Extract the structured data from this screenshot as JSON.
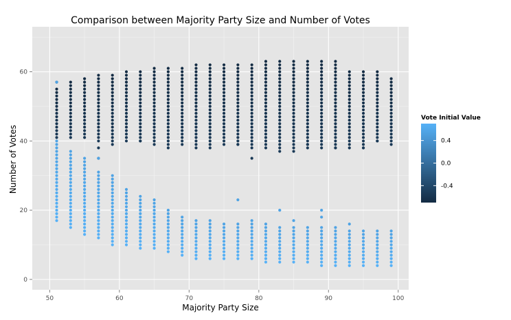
{
  "chart_data": {
    "type": "scatter",
    "title": "Comparison between Majority Party Size and Number of Votes",
    "xlabel": "Majority Party Size",
    "ylabel": "Number of Votes",
    "xlim": [
      47.5,
      101.5
    ],
    "ylim": [
      -3,
      73
    ],
    "x_ticks": [
      50,
      60,
      70,
      80,
      90,
      100
    ],
    "y_ticks": [
      0,
      20,
      40,
      60
    ],
    "grid": true,
    "legend": {
      "title": "Vote Initial Value",
      "position": "right",
      "ticks": [
        0.4,
        0.0,
        -0.4
      ],
      "tick_labels": [
        "0.4",
        "0.0",
        "-0.4"
      ],
      "range": [
        -0.7,
        0.7
      ],
      "low_color": "#132b43",
      "high_color": "#56b1f7"
    },
    "colors": {
      "panel_background": "#e5e5e5",
      "grid_major": "#ffffff",
      "grid_minor": "#f2f2f2"
    },
    "x_values": [
      51,
      53,
      55,
      57,
      59,
      61,
      63,
      65,
      67,
      69,
      71,
      73,
      75,
      77,
      79,
      81,
      83,
      85,
      87,
      89,
      91,
      93,
      95,
      97,
      99
    ],
    "series": [
      {
        "group": "upper cluster (negative initial value)",
        "color_value": -0.55,
        "ranges": [
          [
            51,
            41,
            55
          ],
          [
            53,
            41,
            57
          ],
          [
            55,
            41,
            58
          ],
          [
            57,
            40,
            59
          ],
          [
            59,
            40,
            59
          ],
          [
            61,
            40,
            60
          ],
          [
            63,
            40,
            60
          ],
          [
            65,
            40,
            61
          ],
          [
            67,
            39,
            61
          ],
          [
            69,
            39,
            61
          ],
          [
            71,
            39,
            62
          ],
          [
            73,
            39,
            62
          ],
          [
            75,
            39,
            62
          ],
          [
            77,
            39,
            62
          ],
          [
            79,
            39,
            62
          ],
          [
            81,
            38,
            63
          ],
          [
            83,
            38,
            63
          ],
          [
            85,
            38,
            63
          ],
          [
            87,
            38,
            63
          ],
          [
            89,
            38,
            63
          ],
          [
            91,
            38,
            63
          ],
          [
            93,
            38,
            60
          ],
          [
            95,
            38,
            60
          ],
          [
            97,
            40,
            60
          ],
          [
            99,
            40,
            58
          ]
        ],
        "extra_points": [
          [
            51,
            57
          ],
          [
            57,
            38
          ],
          [
            57,
            35
          ],
          [
            59,
            39
          ],
          [
            63,
            40
          ],
          [
            65,
            39
          ],
          [
            67,
            38
          ],
          [
            71,
            38
          ],
          [
            73,
            38
          ],
          [
            77,
            39
          ],
          [
            79,
            38
          ],
          [
            79,
            35
          ],
          [
            83,
            37
          ],
          [
            85,
            37
          ],
          [
            87,
            39
          ],
          [
            91,
            38
          ],
          [
            95,
            38
          ],
          [
            97,
            40
          ],
          [
            99,
            39
          ]
        ]
      },
      {
        "group": "lower cluster (positive initial value)",
        "color_value": 0.55,
        "ranges": [
          [
            51,
            17,
            40
          ],
          [
            53,
            15,
            37
          ],
          [
            55,
            13,
            35
          ],
          [
            57,
            12,
            31
          ],
          [
            59,
            10,
            30
          ],
          [
            61,
            10,
            26
          ],
          [
            63,
            9,
            24
          ],
          [
            65,
            9,
            23
          ],
          [
            67,
            8,
            20
          ],
          [
            69,
            7,
            18
          ],
          [
            71,
            6,
            17
          ],
          [
            73,
            6,
            17
          ],
          [
            75,
            6,
            16
          ],
          [
            77,
            6,
            16
          ],
          [
            79,
            6,
            16
          ],
          [
            81,
            5,
            16
          ],
          [
            83,
            5,
            15
          ],
          [
            85,
            5,
            15
          ],
          [
            87,
            5,
            15
          ],
          [
            89,
            4,
            15
          ],
          [
            91,
            4,
            15
          ],
          [
            93,
            4,
            14
          ],
          [
            95,
            4,
            14
          ],
          [
            97,
            4,
            14
          ],
          [
            99,
            4,
            14
          ]
        ],
        "extra_points": [
          [
            51,
            57
          ],
          [
            57,
            35
          ],
          [
            77,
            23
          ],
          [
            79,
            17
          ],
          [
            83,
            20
          ],
          [
            85,
            17
          ],
          [
            89,
            20
          ],
          [
            89,
            18
          ],
          [
            93,
            16
          ]
        ]
      }
    ]
  }
}
